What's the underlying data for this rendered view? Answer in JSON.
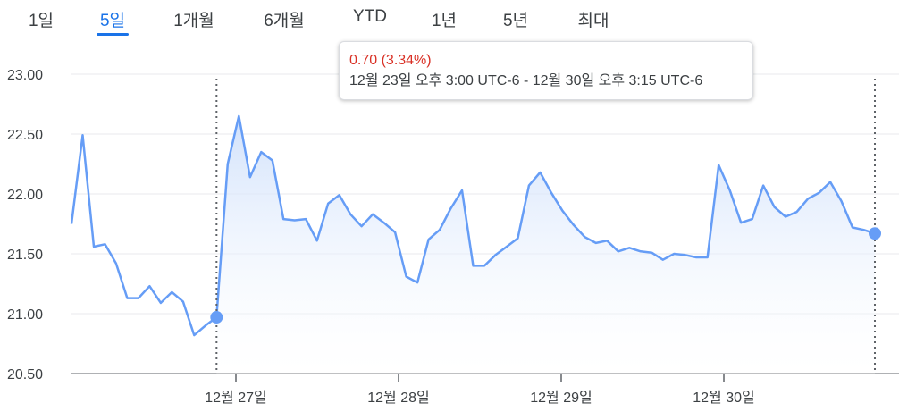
{
  "range_tabs": [
    {
      "label": "1일",
      "active": false
    },
    {
      "label": "5일",
      "active": true
    },
    {
      "label": "1개월",
      "active": false
    },
    {
      "label": "6개월",
      "active": false
    },
    {
      "label": "YTD",
      "active": false
    },
    {
      "label": "1년",
      "active": false
    },
    {
      "label": "5년",
      "active": false
    },
    {
      "label": "최대",
      "active": false
    }
  ],
  "tooltip": {
    "change": "0.70 (3.34%)",
    "range": "12월 23일 오후 3:00 UTC-6 - 12월 30일 오후 3:15 UTC-6"
  },
  "colors": {
    "line": "#669df6",
    "area_top": "#cfe0fb",
    "change_negative": "#d93025",
    "accent": "#1a73e8"
  },
  "chart_data": {
    "type": "area",
    "title": "",
    "xlabel": "",
    "ylabel": "",
    "ylim": [
      20.5,
      23.0
    ],
    "y_ticks": [
      "23.00",
      "22.50",
      "22.00",
      "21.50",
      "21.00",
      "20.50"
    ],
    "x_ticks": [
      "12월 27일",
      "12월 28일",
      "12월 29일",
      "12월 30일"
    ],
    "grid": true,
    "selection": {
      "start_value": 20.97,
      "end_value": 21.67
    },
    "series": [
      {
        "values": [
          21.75,
          22.49,
          21.56,
          21.58,
          21.42,
          21.13,
          21.13,
          21.23,
          21.09,
          21.18,
          21.1,
          20.82,
          20.9,
          20.97,
          22.25,
          22.65,
          22.14,
          22.35,
          22.28,
          21.79,
          21.78,
          21.79,
          21.61,
          21.92,
          21.99,
          21.83,
          21.73,
          21.83,
          21.76,
          21.68,
          21.31,
          21.26,
          21.62,
          21.7,
          21.88,
          22.03,
          21.4,
          21.4,
          21.49,
          21.56,
          21.63,
          22.07,
          22.18,
          22.01,
          21.86,
          21.74,
          21.64,
          21.59,
          21.61,
          21.52,
          21.55,
          21.52,
          21.51,
          21.45,
          21.5,
          21.49,
          21.47,
          21.47,
          22.24,
          22.03,
          21.76,
          21.79,
          22.07,
          21.89,
          21.81,
          21.85,
          21.96,
          22.01,
          22.1,
          21.94,
          21.72,
          21.7,
          21.67
        ]
      }
    ]
  }
}
